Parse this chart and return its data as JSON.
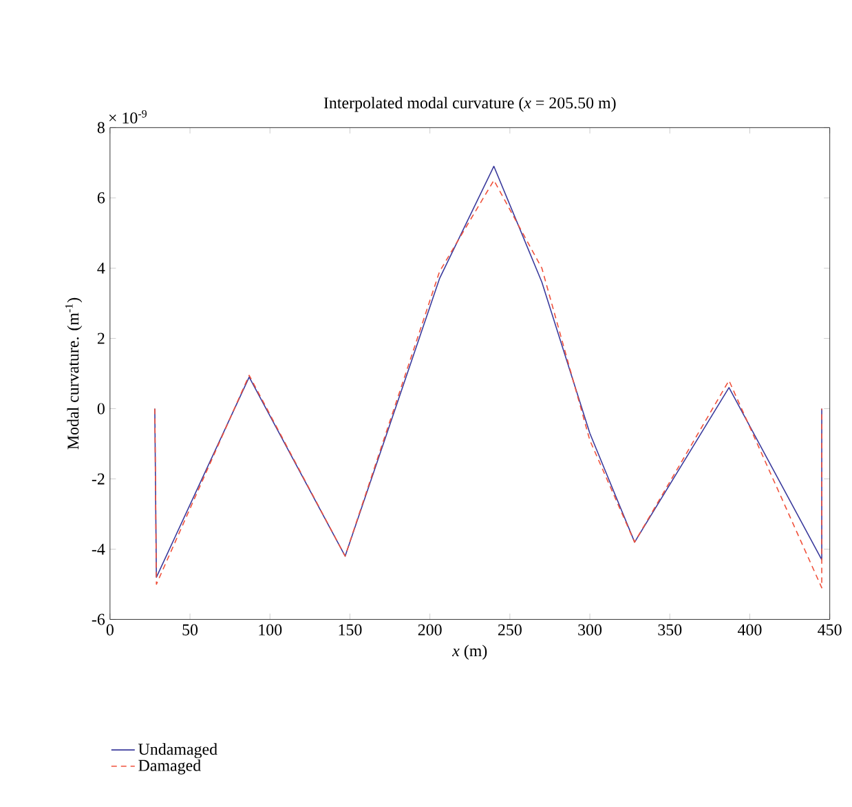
{
  "chart_data": {
    "type": "line",
    "title": "Interpolated modal curvature (*x* = 205.50 m)",
    "xlabel": "*x* (m)",
    "ylabel": "Modal curvature. (m$^{-1}$)",
    "annotations": [
      "× 10$^{-9}$"
    ],
    "xlim": [
      0,
      450
    ],
    "xticks": [
      0,
      50,
      100,
      150,
      200,
      250,
      300,
      350,
      400,
      450
    ],
    "ylim": [
      -6,
      8
    ],
    "yticks": [
      -6,
      -4,
      -2,
      0,
      2,
      4,
      6,
      8
    ],
    "grid": false,
    "legend": "bottom",
    "series": [
      {
        "name": "Undamaged",
        "color": "#3a3a9c",
        "line_style": "solid",
        "x": [
          28,
          29,
          87,
          147,
          206,
          240,
          270,
          300,
          328,
          387,
          445,
          445
        ],
        "values": [
          0,
          -4.8,
          0.9,
          -4.2,
          3.7,
          6.9,
          3.6,
          -0.7,
          -3.8,
          0.6,
          -4.3,
          0
        ]
      },
      {
        "name": "Damaged",
        "color": "#f0503a",
        "line_style": "dashed",
        "x": [
          28,
          29,
          87,
          147,
          206,
          240,
          270,
          300,
          328,
          387,
          445,
          445
        ],
        "values": [
          0,
          -5.0,
          0.95,
          -4.2,
          3.9,
          6.5,
          4.0,
          -0.9,
          -3.8,
          0.8,
          -5.1,
          0
        ]
      }
    ]
  }
}
